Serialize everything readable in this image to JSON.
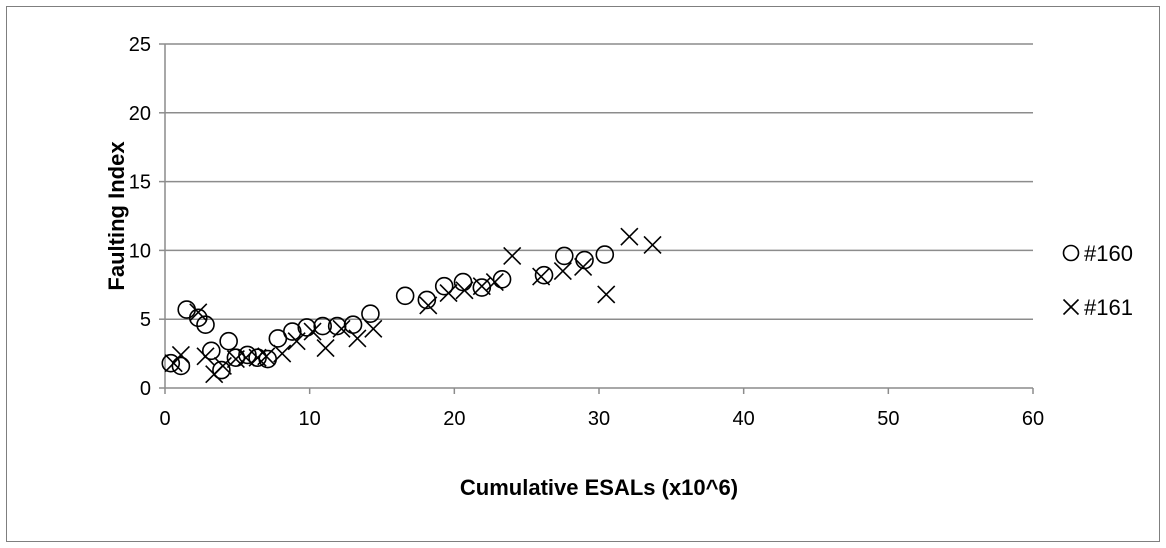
{
  "chart_data": {
    "type": "scatter",
    "xlabel": "Cumulative ESALs (x10^6)",
    "ylabel": "Faulting Index",
    "xlim": [
      0,
      60
    ],
    "ylim": [
      0,
      25
    ],
    "xticks": [
      0,
      10,
      20,
      30,
      40,
      50,
      60
    ],
    "yticks": [
      0,
      5,
      10,
      15,
      20,
      25
    ],
    "grid": "horizontal",
    "legend_position": "right",
    "series": [
      {
        "name": "#160",
        "marker": "circle",
        "color": "#000000",
        "points": [
          [
            0.4,
            1.8
          ],
          [
            1.1,
            1.6
          ],
          [
            1.5,
            5.7
          ],
          [
            2.3,
            5.1
          ],
          [
            2.8,
            4.6
          ],
          [
            3.2,
            2.7
          ],
          [
            3.9,
            1.3
          ],
          [
            4.4,
            3.4
          ],
          [
            4.9,
            2.2
          ],
          [
            5.7,
            2.4
          ],
          [
            6.4,
            2.2
          ],
          [
            7.1,
            2.1
          ],
          [
            7.8,
            3.6
          ],
          [
            8.8,
            4.1
          ],
          [
            9.8,
            4.4
          ],
          [
            10.9,
            4.5
          ],
          [
            11.9,
            4.5
          ],
          [
            13.0,
            4.6
          ],
          [
            14.2,
            5.4
          ],
          [
            16.6,
            6.7
          ],
          [
            18.1,
            6.4
          ],
          [
            19.3,
            7.4
          ],
          [
            20.6,
            7.7
          ],
          [
            21.9,
            7.3
          ],
          [
            23.3,
            7.9
          ],
          [
            26.2,
            8.2
          ],
          [
            27.6,
            9.6
          ],
          [
            29.0,
            9.3
          ],
          [
            30.4,
            9.7
          ]
        ]
      },
      {
        "name": "#161",
        "marker": "x",
        "color": "#000000",
        "points": [
          [
            0.6,
            1.8
          ],
          [
            1.1,
            2.4
          ],
          [
            2.3,
            5.5
          ],
          [
            2.8,
            2.3
          ],
          [
            3.4,
            1.0
          ],
          [
            4.0,
            1.6
          ],
          [
            4.9,
            2.1
          ],
          [
            5.6,
            2.2
          ],
          [
            6.4,
            2.2
          ],
          [
            7.0,
            2.3
          ],
          [
            8.1,
            2.5
          ],
          [
            9.1,
            3.4
          ],
          [
            10.2,
            4.1
          ],
          [
            11.1,
            2.9
          ],
          [
            12.2,
            4.3
          ],
          [
            13.3,
            3.6
          ],
          [
            14.4,
            4.3
          ],
          [
            18.2,
            6.0
          ],
          [
            19.6,
            6.9
          ],
          [
            20.7,
            7.1
          ],
          [
            21.9,
            7.4
          ],
          [
            22.8,
            7.7
          ],
          [
            24.0,
            9.6
          ],
          [
            26.0,
            8.1
          ],
          [
            27.5,
            8.5
          ],
          [
            28.9,
            8.8
          ],
          [
            30.5,
            6.8
          ],
          [
            32.1,
            11.0
          ],
          [
            33.7,
            10.4
          ]
        ]
      }
    ]
  }
}
